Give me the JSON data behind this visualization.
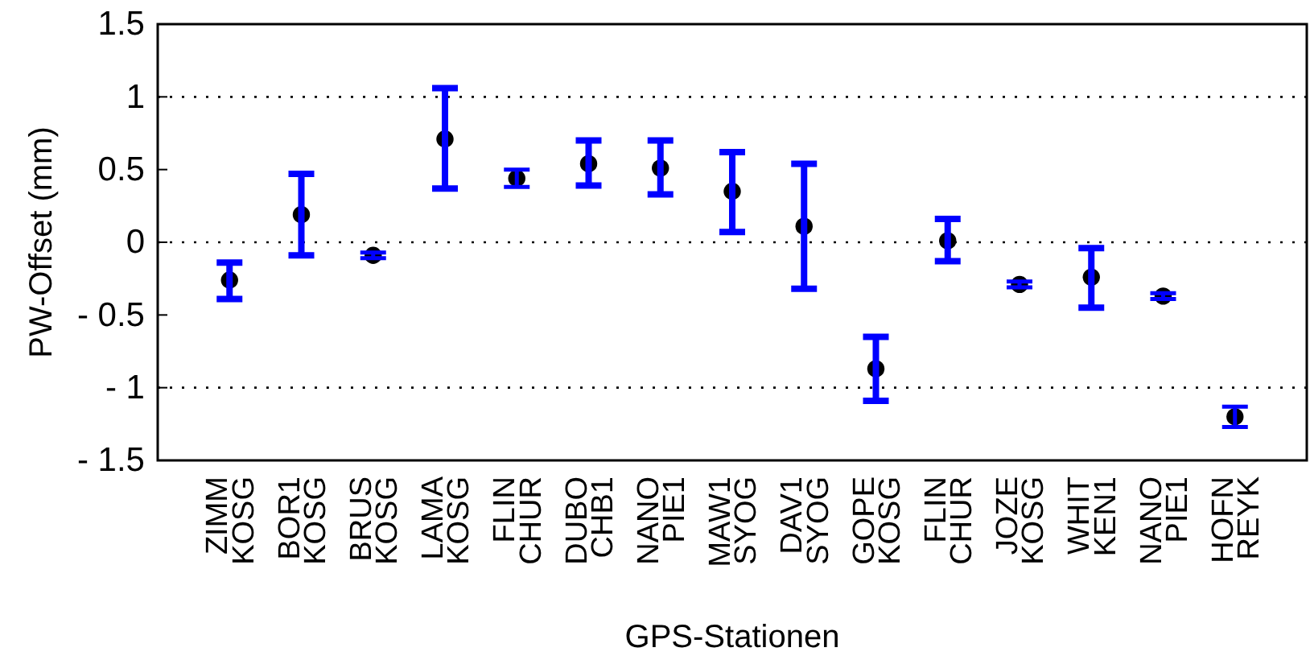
{
  "chart_data": {
    "type": "scatter",
    "xlabel": "GPS-Stationen",
    "ylabel": "PW-Offset (mm)",
    "categories": [
      "ZIMM\nKOSG",
      "BOR1\nKOSG",
      "BRUS\nKOSG",
      "LAMA\nKOSG",
      "FLIN\nCHUR",
      "DUBO\nCHB1",
      "NANO\nPIE1",
      "MAW1\nSYOG",
      "DAV1\nSYOG",
      "GOPE\nKOSG",
      "FLIN\nCHUR",
      "JOZE\nKOSG",
      "WHIT\nKEN1",
      "NANO\nPIE1",
      "HOFN\nREYK"
    ],
    "series": [
      {
        "color": "#000000",
        "values": [
          -0.26,
          0.19,
          -0.09,
          0.71,
          0.44,
          0.54,
          0.51,
          0.35,
          0.11,
          -0.87,
          0.01,
          -0.29,
          -0.24,
          -0.37,
          -1.2
        ],
        "errors": [
          [
            -0.39,
            -0.14
          ],
          [
            -0.09,
            0.47
          ],
          [
            -0.11,
            -0.07
          ],
          [
            0.37,
            1.06
          ],
          [
            0.38,
            0.5
          ],
          [
            0.39,
            0.7
          ],
          [
            0.33,
            0.7
          ],
          [
            0.07,
            0.62
          ],
          [
            -0.32,
            0.54
          ],
          [
            -1.09,
            -0.65
          ],
          [
            -0.13,
            0.16
          ],
          [
            -0.31,
            -0.27
          ],
          [
            -0.45,
            -0.04
          ],
          [
            -0.39,
            -0.35
          ],
          [
            -1.27,
            -1.13
          ]
        ]
      }
    ],
    "ylim": [
      -1.5,
      1.5
    ],
    "yticks": [
      {
        "value": -1.5,
        "label": "- 1.5"
      },
      {
        "value": -1,
        "label": "- 1"
      },
      {
        "value": -0.5,
        "label": "- 0.5"
      },
      0,
      0.5,
      1,
      1.5
    ],
    "ref_lines": [
      {
        "axis": "y",
        "value": 1,
        "line_style": "dotted"
      },
      {
        "axis": "y",
        "value": 0,
        "line_style": "dotted"
      },
      {
        "axis": "y",
        "value": -1,
        "line_style": "dotted"
      }
    ],
    "marker": "circle",
    "grid": false
  }
}
